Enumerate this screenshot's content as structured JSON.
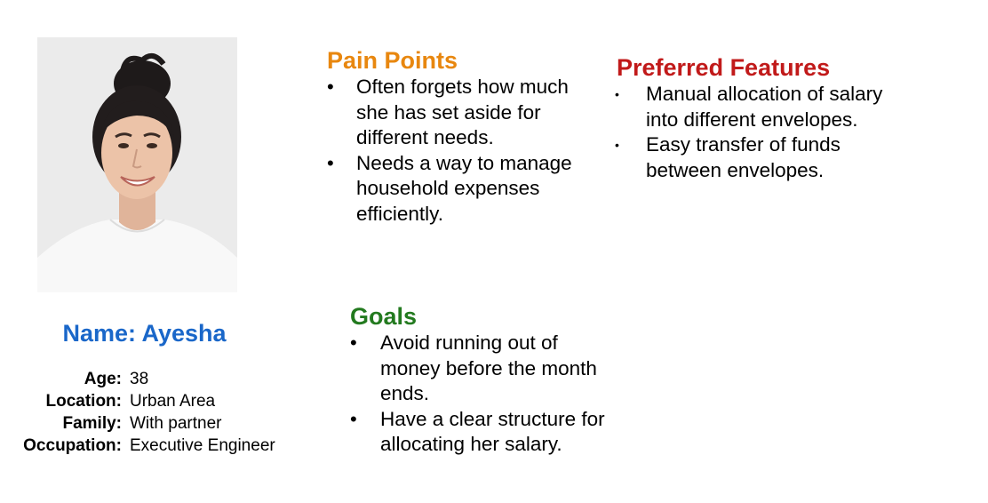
{
  "persona": {
    "name": "Name: Ayesha",
    "details": [
      {
        "label": "Age:",
        "value": "38"
      },
      {
        "label": "Location:",
        "value": "Urban Area"
      },
      {
        "label": "Family:",
        "value": "With partner"
      },
      {
        "label": "Occupation:",
        "value": "Executive Engineer"
      }
    ]
  },
  "pain_points": {
    "title": "Pain Points",
    "color": "#e8870f",
    "items": [
      "Often forgets how much she has set aside for different needs.",
      "Needs a way to manage household expenses efficiently."
    ]
  },
  "goals": {
    "title": "Goals",
    "color": "#237a1f",
    "items": [
      "Avoid running out of money before the month ends.",
      "Have a clear structure for allocating her salary."
    ]
  },
  "preferred_features": {
    "title": "Preferred Features",
    "color": "#c11a1a",
    "items": [
      "Manual allocation of salary into different envelopes.",
      "Easy transfer of funds between envelopes."
    ]
  },
  "icons": {
    "photo": "portrait-photo",
    "bullet_round": "•",
    "bullet_small": "•"
  }
}
